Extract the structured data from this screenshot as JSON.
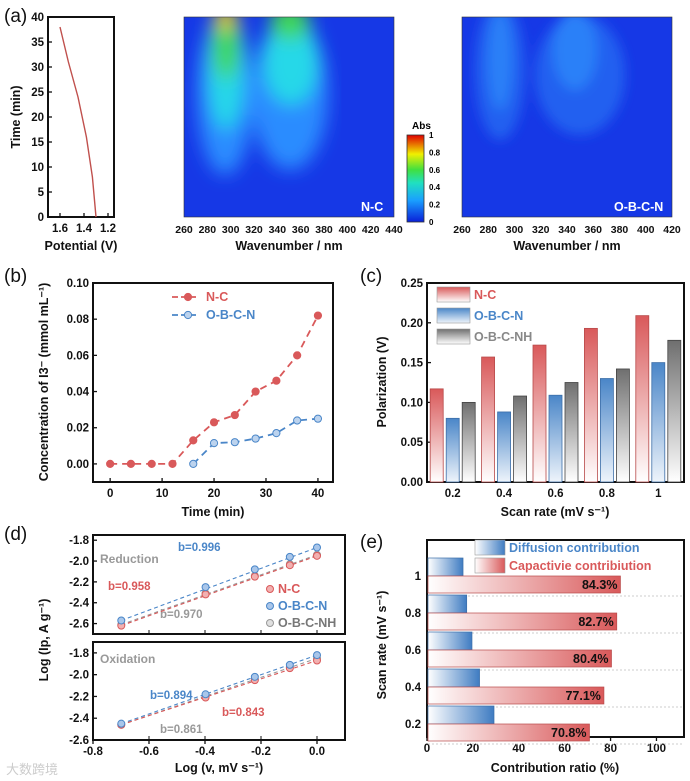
{
  "panel_labels": [
    "(a)",
    "(b)",
    "(c)",
    "(d)",
    "(e)"
  ],
  "watermark": "大数跨境",
  "colors": {
    "nc": "#d9595a",
    "obcn": "#4a86c8",
    "nh": "#7a7a7a"
  },
  "chart_data": [
    {
      "id": "a-potential",
      "type": "line",
      "xlabel": "Potential (V)",
      "ylabel": "Time (min)",
      "xlim": [
        1.7,
        1.15
      ],
      "ylim": [
        0,
        40
      ],
      "xticks": [
        1.6,
        1.4,
        1.2
      ],
      "xtick_labels": [
        "1.6",
        "1.4",
        "1.2"
      ],
      "yticks": [
        0,
        5,
        10,
        15,
        20,
        25,
        30,
        35,
        40
      ],
      "ytick_labels": [
        "0",
        "5",
        "10",
        "15",
        "20",
        "25",
        "30",
        "35",
        "40"
      ],
      "series": [
        {
          "name": "potential",
          "x": [
            1.6,
            1.53,
            1.45,
            1.38,
            1.33,
            1.3
          ],
          "y": [
            38,
            31,
            24,
            16,
            8,
            0
          ]
        }
      ]
    },
    {
      "id": "a-nc",
      "type": "heatmap",
      "label": "N-C",
      "xlabel": "Wavenumber / nm",
      "xlim": [
        260,
        440
      ],
      "ylim": [
        0,
        40
      ],
      "xticks": [
        260,
        280,
        300,
        320,
        340,
        360,
        380,
        400,
        420,
        440
      ],
      "xtick_labels": [
        "260",
        "280",
        "300",
        "320",
        "340",
        "360",
        "380",
        "400",
        "420",
        "440"
      ],
      "peaks_nm": [
        287,
        350
      ],
      "colorbar": {
        "title": "Abs",
        "range": [
          0,
          1
        ],
        "ticks": [
          "0",
          "0.2",
          "0.4",
          "0.6",
          "0.8",
          "1"
        ]
      }
    },
    {
      "id": "a-obcn",
      "type": "heatmap",
      "label": "O-B-C-N",
      "xlabel": "Wavenumber / nm",
      "xlim": [
        260,
        420
      ],
      "ylim": [
        0,
        40
      ],
      "xticks": [
        260,
        280,
        300,
        320,
        340,
        360,
        380,
        400,
        420
      ],
      "xtick_labels": [
        "260",
        "280",
        "300",
        "320",
        "340",
        "360",
        "380",
        "400",
        "420"
      ],
      "peaks_nm": [
        287,
        350
      ]
    },
    {
      "id": "b",
      "type": "line",
      "xlabel": "Time (min)",
      "ylabel": "Concentration of I3⁻ (mmol mL⁻¹)",
      "xlim": [
        -3.3,
        42.9
      ],
      "ylim": [
        -0.01,
        0.1
      ],
      "xticks": [
        0,
        10,
        20,
        30,
        40
      ],
      "xtick_labels": [
        "0",
        "10",
        "20",
        "30",
        "40"
      ],
      "yticks": [
        0,
        0.02,
        0.04,
        0.06,
        0.08,
        0.1
      ],
      "ytick_labels": [
        "0.00",
        "0.02",
        "0.04",
        "0.06",
        "0.08",
        "0.10"
      ],
      "legend": "top-center",
      "series": [
        {
          "name": "N-C",
          "x": [
            0,
            4,
            8,
            12,
            16,
            20,
            24,
            28,
            32,
            36,
            40
          ],
          "y": [
            0,
            0,
            0,
            0,
            0.013,
            0.023,
            0.027,
            0.04,
            0.046,
            0.06,
            0.082
          ]
        },
        {
          "name": "O-B-C-N",
          "x": [
            16,
            20,
            24,
            28,
            32,
            36,
            40
          ],
          "y": [
            0,
            0.0115,
            0.012,
            0.014,
            0.017,
            0.024,
            0.025
          ]
        }
      ]
    },
    {
      "id": "c",
      "type": "bar",
      "xlabel": "Scan rate (mV s⁻¹)",
      "ylabel": "Polarization (V)",
      "ylim": [
        0,
        0.25
      ],
      "categories": [
        "0.2",
        "0.4",
        "0.6",
        "0.8",
        "1"
      ],
      "yticks": [
        0,
        0.05,
        0.1,
        0.15,
        0.2,
        0.25
      ],
      "ytick_labels": [
        "0.00",
        "0.05",
        "0.10",
        "0.15",
        "0.20",
        "0.25"
      ],
      "legend": "top-left",
      "series": [
        {
          "name": "N-C",
          "values": [
            0.117,
            0.157,
            0.172,
            0.193,
            0.209
          ]
        },
        {
          "name": "O-B-C-N",
          "values": [
            0.08,
            0.088,
            0.109,
            0.13,
            0.15
          ]
        },
        {
          "name": "O-B-C-NH",
          "values": [
            0.1,
            0.108,
            0.125,
            0.142,
            0.178
          ]
        }
      ]
    },
    {
      "id": "d",
      "type": "scatter",
      "xlabel": "Log (v, mV s⁻¹)",
      "ylabel": "Log (Ip, A g⁻¹)",
      "xlim": [
        -0.8,
        0.1
      ],
      "xticks": [
        -0.8,
        -0.6,
        -0.4,
        -0.2,
        0.0
      ],
      "xtick_labels": [
        "-0.8",
        "-0.6",
        "-0.4",
        "-0.2",
        "0.0"
      ],
      "legend": "right",
      "legend_entries": [
        "N-C",
        "O-B-C-N",
        "O-B-C-NH"
      ],
      "subplots": [
        {
          "title": "Reduction",
          "ylim": [
            -2.7,
            -1.75
          ],
          "yticks": [
            -1.8,
            -2.0,
            -2.2,
            -2.4,
            -2.6
          ],
          "ytick_labels": [
            "-1.8",
            "-2.0",
            "-2.2",
            "-2.4",
            "-2.6"
          ],
          "x": [
            -0.699,
            -0.398,
            -0.222,
            -0.097,
            0
          ],
          "series": [
            {
              "name": "O-B-C-NH",
              "y": [
                -2.61,
                -2.31,
                -2.14,
                -2.03,
                -1.94
              ],
              "b": "b=0.970"
            },
            {
              "name": "N-C",
              "y": [
                -2.62,
                -2.32,
                -2.15,
                -2.04,
                -1.95
              ],
              "b": "b=0.958"
            },
            {
              "name": "O-B-C-N",
              "y": [
                -2.57,
                -2.25,
                -2.08,
                -1.96,
                -1.87
              ],
              "b": "b=0.996"
            }
          ]
        },
        {
          "title": "Oxidation",
          "ylim": [
            -2.6,
            -1.7
          ],
          "yticks": [
            -1.8,
            -2.0,
            -2.2,
            -2.4,
            -2.6
          ],
          "ytick_labels": [
            "-1.8",
            "-2.0",
            "-2.2",
            "-2.4",
            "-2.6"
          ],
          "x": [
            -0.699,
            -0.398,
            -0.222,
            -0.097,
            0
          ],
          "series": [
            {
              "name": "O-B-C-NH",
              "y": [
                -2.46,
                -2.2,
                -2.04,
                -1.93,
                -1.85
              ],
              "b": "b=0.861"
            },
            {
              "name": "N-C",
              "y": [
                -2.46,
                -2.21,
                -2.05,
                -1.94,
                -1.87
              ],
              "b": "b=0.843"
            },
            {
              "name": "O-B-C-N",
              "y": [
                -2.45,
                -2.18,
                -2.02,
                -1.91,
                -1.82
              ],
              "b": "b=0.894"
            }
          ]
        }
      ]
    },
    {
      "id": "e",
      "type": "bar",
      "orientation": "horizontal",
      "xlabel": "Contribution ratio (%)",
      "ylabel": "Scan rate (mV s⁻¹)",
      "xlim": [
        0,
        112
      ],
      "xticks": [
        0,
        20,
        40,
        60,
        80,
        100
      ],
      "xtick_labels": [
        "0",
        "20",
        "40",
        "60",
        "80",
        "100"
      ],
      "categories": [
        "1",
        "0.8",
        "0.6",
        "0.4",
        "0.2"
      ],
      "legend": "top",
      "series": [
        {
          "name": "Diffusion contribution",
          "values": [
            15.7,
            17.3,
            19.6,
            22.9,
            29.2
          ]
        },
        {
          "name": "Capactivie contribiution",
          "values": [
            84.3,
            82.7,
            80.4,
            77.1,
            70.8
          ],
          "labels": [
            "84.3%",
            "82.7%",
            "80.4%",
            "77.1%",
            "70.8%"
          ]
        }
      ]
    }
  ]
}
